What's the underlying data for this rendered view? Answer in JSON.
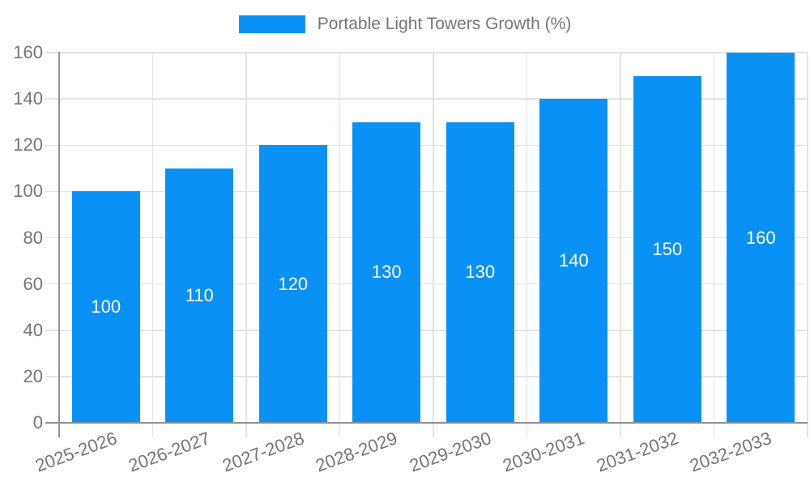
{
  "chart_data": {
    "type": "bar",
    "title": "",
    "legend": {
      "label": "Portable Light Towers Growth (%)",
      "position": "top-center"
    },
    "categories": [
      "2025-2026",
      "2026-2027",
      "2027-2028",
      "2028-2029",
      "2029-2030",
      "2030-2031",
      "2031-2032",
      "2032-2033"
    ],
    "values": [
      100,
      110,
      120,
      130,
      130,
      140,
      150,
      160
    ],
    "value_labels_shown": true,
    "value_label_position": "inside-center",
    "xlabel": "",
    "ylabel": "",
    "ylim": [
      0,
      160
    ],
    "yticks": [
      0,
      20,
      40,
      60,
      80,
      100,
      120,
      140,
      160
    ],
    "grid": true,
    "x_tick_label_rotation_deg": -20,
    "colors": {
      "bar": "#0a91f5",
      "value_label": "#ffffff",
      "axis": "#909090",
      "grid": "#e3e3e3",
      "tick_text": "#757575",
      "legend_text": "#757575",
      "background": "#ffffff"
    }
  }
}
